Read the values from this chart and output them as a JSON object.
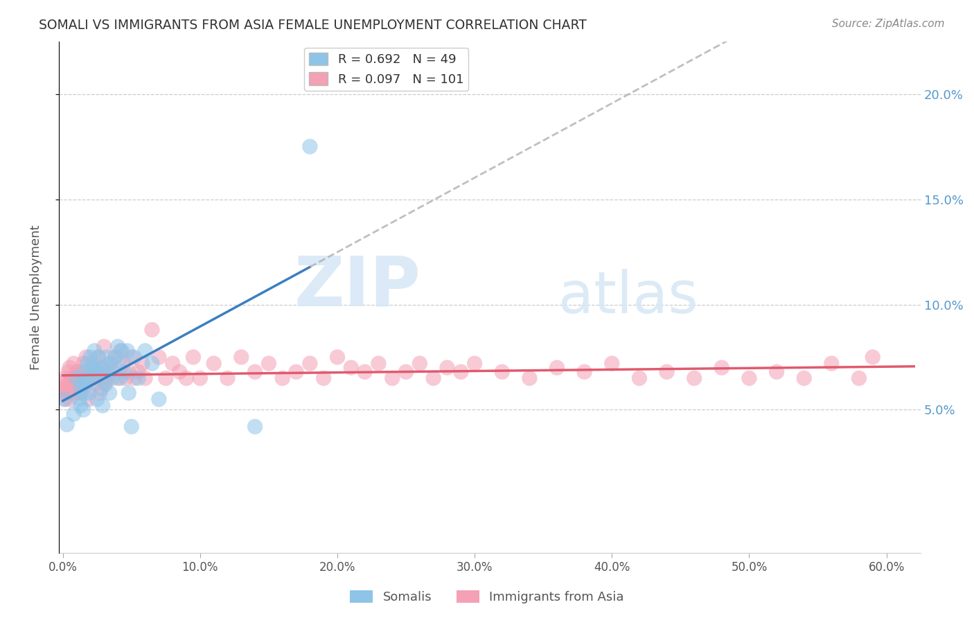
{
  "title": "SOMALI VS IMMIGRANTS FROM ASIA FEMALE UNEMPLOYMENT CORRELATION CHART",
  "source": "Source: ZipAtlas.com",
  "ylabel": "Female Unemployment",
  "legend_blue_r": "0.692",
  "legend_blue_n": "49",
  "legend_pink_r": "0.097",
  "legend_pink_n": "101",
  "legend_blue_label": "Somalis",
  "legend_pink_label": "Immigrants from Asia",
  "watermark_zip": "ZIP",
  "watermark_atlas": "atlas",
  "color_blue": "#8ec4e8",
  "color_pink": "#f4a0b5",
  "color_line_blue": "#3a7fc1",
  "color_line_pink": "#e05a6e",
  "color_line_gray": "#aaaaaa",
  "background": "#ffffff",
  "xlim": [
    -0.003,
    0.625
  ],
  "ylim": [
    -0.018,
    0.225
  ],
  "ytick_vals": [
    0.05,
    0.1,
    0.15,
    0.2
  ],
  "ytick_labels": [
    "5.0%",
    "10.0%",
    "15.0%",
    "20.0%"
  ],
  "xtick_vals": [
    0.0,
    0.1,
    0.2,
    0.3,
    0.4,
    0.5,
    0.6
  ],
  "xtick_labels": [
    "0.0%",
    "10.0%",
    "20.0%",
    "30.0%",
    "40.0%",
    "50.0%",
    "60.0%"
  ],
  "somali_x": [
    0.001,
    0.003,
    0.008,
    0.01,
    0.012,
    0.013,
    0.013,
    0.014,
    0.015,
    0.015,
    0.016,
    0.017,
    0.018,
    0.018,
    0.019,
    0.02,
    0.021,
    0.022,
    0.023,
    0.023,
    0.024,
    0.025,
    0.026,
    0.027,
    0.028,
    0.029,
    0.03,
    0.031,
    0.032,
    0.033,
    0.034,
    0.035,
    0.036,
    0.038,
    0.04,
    0.041,
    0.042,
    0.043,
    0.045,
    0.047,
    0.048,
    0.05,
    0.052,
    0.055,
    0.06,
    0.065,
    0.07,
    0.14,
    0.18
  ],
  "somali_y": [
    0.055,
    0.043,
    0.048,
    0.065,
    0.055,
    0.052,
    0.06,
    0.063,
    0.058,
    0.05,
    0.068,
    0.063,
    0.072,
    0.065,
    0.058,
    0.075,
    0.07,
    0.065,
    0.078,
    0.07,
    0.068,
    0.055,
    0.075,
    0.068,
    0.06,
    0.052,
    0.07,
    0.063,
    0.075,
    0.068,
    0.058,
    0.072,
    0.065,
    0.075,
    0.08,
    0.072,
    0.065,
    0.078,
    0.068,
    0.078,
    0.058,
    0.042,
    0.075,
    0.065,
    0.078,
    0.072,
    0.055,
    0.042,
    0.175
  ],
  "asia_x": [
    0.0,
    0.001,
    0.001,
    0.002,
    0.002,
    0.003,
    0.003,
    0.004,
    0.005,
    0.005,
    0.006,
    0.007,
    0.008,
    0.009,
    0.01,
    0.011,
    0.012,
    0.013,
    0.014,
    0.015,
    0.016,
    0.017,
    0.018,
    0.02,
    0.022,
    0.024,
    0.026,
    0.028,
    0.03,
    0.032,
    0.034,
    0.036,
    0.038,
    0.04,
    0.042,
    0.044,
    0.046,
    0.048,
    0.05,
    0.052,
    0.055,
    0.058,
    0.06,
    0.065,
    0.07,
    0.075,
    0.08,
    0.085,
    0.09,
    0.095,
    0.1,
    0.11,
    0.12,
    0.13,
    0.14,
    0.15,
    0.16,
    0.17,
    0.18,
    0.19,
    0.2,
    0.21,
    0.22,
    0.23,
    0.24,
    0.25,
    0.26,
    0.27,
    0.28,
    0.29,
    0.3,
    0.32,
    0.34,
    0.36,
    0.38,
    0.4,
    0.42,
    0.44,
    0.46,
    0.48,
    0.5,
    0.52,
    0.54,
    0.56,
    0.58,
    0.59,
    0.003,
    0.005,
    0.007,
    0.009,
    0.011,
    0.013,
    0.015,
    0.017,
    0.019,
    0.021,
    0.023,
    0.025,
    0.027,
    0.029,
    0.031
  ],
  "asia_y": [
    0.063,
    0.06,
    0.058,
    0.065,
    0.055,
    0.062,
    0.058,
    0.068,
    0.055,
    0.07,
    0.065,
    0.058,
    0.072,
    0.062,
    0.068,
    0.058,
    0.065,
    0.062,
    0.068,
    0.072,
    0.065,
    0.075,
    0.068,
    0.065,
    0.072,
    0.068,
    0.075,
    0.07,
    0.08,
    0.065,
    0.072,
    0.068,
    0.075,
    0.065,
    0.078,
    0.072,
    0.065,
    0.068,
    0.075,
    0.065,
    0.068,
    0.072,
    0.065,
    0.088,
    0.075,
    0.065,
    0.072,
    0.068,
    0.065,
    0.075,
    0.065,
    0.072,
    0.065,
    0.075,
    0.068,
    0.072,
    0.065,
    0.068,
    0.072,
    0.065,
    0.075,
    0.07,
    0.068,
    0.072,
    0.065,
    0.068,
    0.072,
    0.065,
    0.07,
    0.068,
    0.072,
    0.068,
    0.065,
    0.07,
    0.068,
    0.072,
    0.065,
    0.068,
    0.065,
    0.07,
    0.065,
    0.068,
    0.065,
    0.072,
    0.065,
    0.075,
    0.06,
    0.058,
    0.065,
    0.062,
    0.068,
    0.058,
    0.065,
    0.062,
    0.055,
    0.065,
    0.062,
    0.068,
    0.058,
    0.065,
    0.062
  ]
}
